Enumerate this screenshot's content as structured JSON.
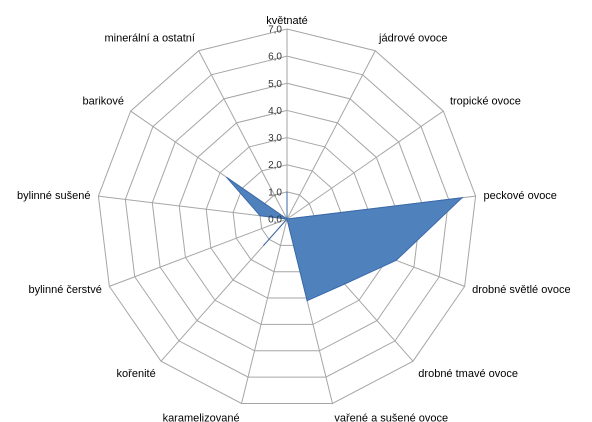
{
  "chart_data": {
    "type": "radar",
    "categories": [
      "květnaté",
      "jádrové ovoce",
      "tropické ovoce",
      "peckové ovoce",
      "drobné světlé ovoce",
      "drobné tmavé ovoce",
      "vařené a sušené ovoce",
      "karamelizované",
      "kořenité",
      "bylinné čerstvé",
      "bylinné sušené",
      "barikové",
      "minerální a ostatní"
    ],
    "values": [
      1.0,
      0.0,
      0.0,
      6.5,
      4.3,
      3.2,
      3.1,
      0.0,
      1.3,
      0.0,
      1.0,
      2.7,
      0.0
    ],
    "rlim": [
      0,
      7
    ],
    "ticks": [
      0,
      1,
      2,
      3,
      4,
      5,
      6,
      7
    ],
    "tick_labels": [
      "0,0",
      "1,0",
      "2,0",
      "3,0",
      "4,0",
      "5,0",
      "6,0",
      "7,0"
    ],
    "grid": true,
    "series_fill": "#4f81bd",
    "series_stroke": "#3a6aaa",
    "grid_color": "#a6a6a6",
    "legend": "none"
  }
}
